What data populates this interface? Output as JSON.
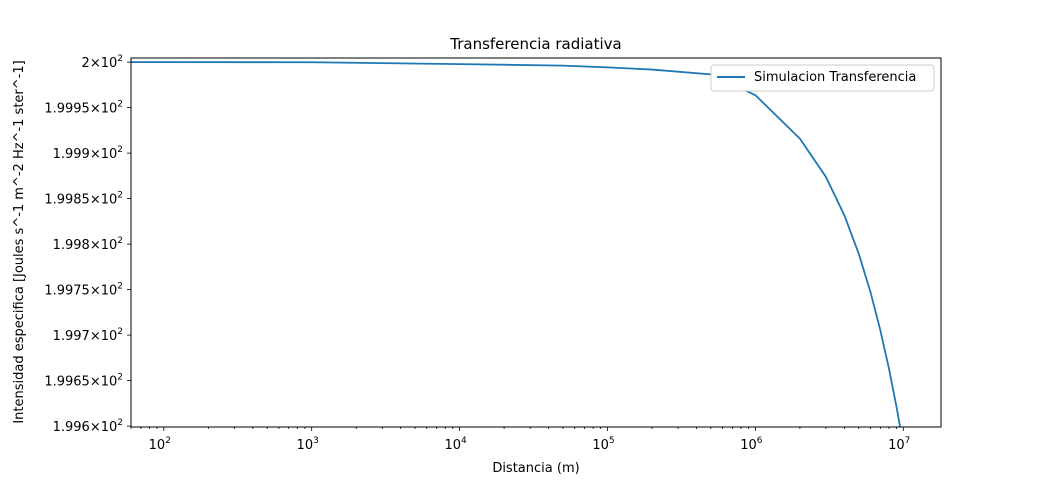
{
  "chart_data": {
    "type": "line",
    "title": "Transferencia radiativa",
    "xlabel": "Distancia (m)",
    "ylabel": "Intensidad especifica [Joules s^-1 m^-2 Hz^-1  ster^-1]",
    "xscale": "log",
    "xlim": [
      60,
      18000000
    ],
    "ylim": [
      199.599,
      200.0045
    ],
    "x_ticks": [
      {
        "value": 100,
        "base": "10",
        "exp": "2"
      },
      {
        "value": 1000,
        "base": "10",
        "exp": "3"
      },
      {
        "value": 10000,
        "base": "10",
        "exp": "4"
      },
      {
        "value": 100000,
        "base": "10",
        "exp": "5"
      },
      {
        "value": 1000000,
        "base": "10",
        "exp": "6"
      },
      {
        "value": 10000000,
        "base": "10",
        "exp": "7"
      }
    ],
    "y_ticks": [
      {
        "value": 200.0,
        "mant": "2",
        "exp": "2"
      },
      {
        "value": 199.95,
        "mant": "1.9995",
        "exp": "2"
      },
      {
        "value": 199.9,
        "mant": "1.999",
        "exp": "2"
      },
      {
        "value": 199.85,
        "mant": "1.9985",
        "exp": "2"
      },
      {
        "value": 199.8,
        "mant": "1.998",
        "exp": "2"
      },
      {
        "value": 199.75,
        "mant": "1.9975",
        "exp": "2"
      },
      {
        "value": 199.7,
        "mant": "1.997",
        "exp": "2"
      },
      {
        "value": 199.65,
        "mant": "1.9965",
        "exp": "2"
      },
      {
        "value": 199.6,
        "mant": "1.996",
        "exp": "2"
      }
    ],
    "grid": false,
    "legend_position": "top-right",
    "series": [
      {
        "name": "Simulacion Transferencia",
        "color": "#1f77b4",
        "x": [
          1,
          100,
          1000,
          10000,
          50000,
          100000,
          200000,
          500000,
          1000000,
          2000000,
          3000000,
          4000000,
          5000000,
          6000000,
          7000000,
          8000000,
          9000000,
          10000000
        ],
        "y": [
          200.0,
          200.0,
          199.9998,
          199.9978,
          199.9961,
          199.9942,
          199.9918,
          199.9865,
          199.9637,
          199.9159,
          199.8738,
          199.8316,
          199.7895,
          199.7474,
          199.7053,
          199.6633,
          199.6213,
          199.5793
        ]
      }
    ]
  }
}
